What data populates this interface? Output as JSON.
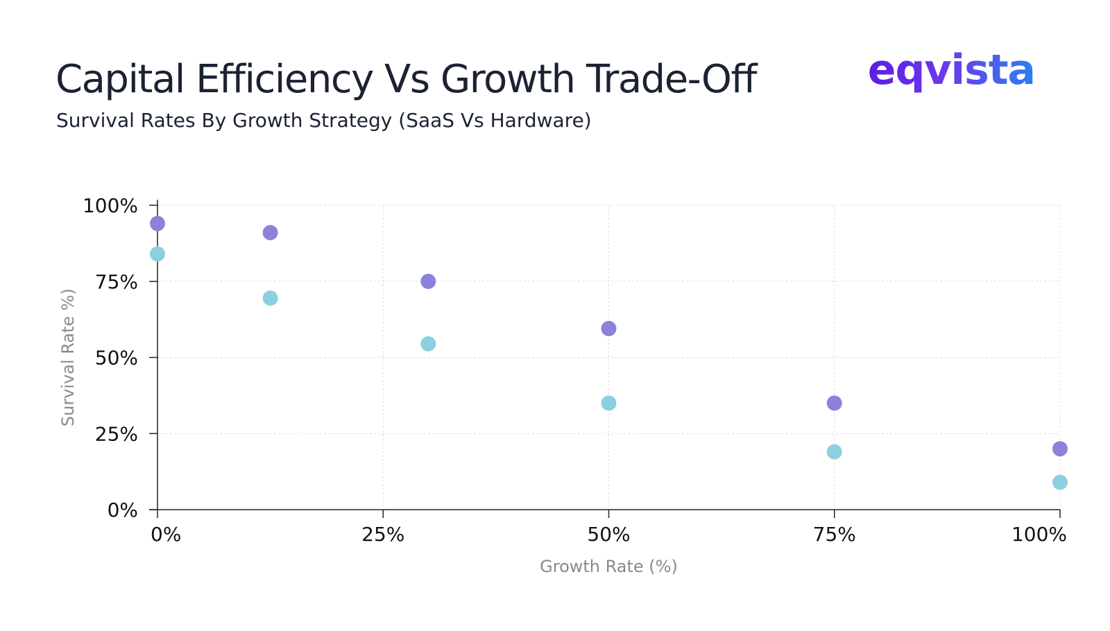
{
  "header": {
    "title": "Capital Efficiency Vs Growth Trade-Off",
    "subtitle": "Survival Rates By Growth Strategy (SaaS Vs Hardware)",
    "logo": "eqvista"
  },
  "chart_data": {
    "type": "scatter",
    "title": "Capital Efficiency Vs Growth Trade-Off",
    "subtitle": "Survival Rates By Growth Strategy (SaaS Vs Hardware)",
    "xlabel": "Growth Rate (%)",
    "ylabel": "Survival Rate %)",
    "xlim": [
      0,
      100
    ],
    "ylim": [
      0,
      100
    ],
    "xticks": [
      0,
      25,
      50,
      75,
      100
    ],
    "xtick_labels": [
      "0%",
      "25%",
      "50%",
      "75%",
      "100%"
    ],
    "yticks": [
      0,
      25,
      50,
      75,
      100
    ],
    "ytick_labels": [
      "0%",
      "25%",
      "50%",
      "75%",
      "100%"
    ],
    "grid": true,
    "legend": "none",
    "series": [
      {
        "color": "#8a82dc",
        "points": [
          {
            "x": 0,
            "y": 94
          },
          {
            "x": 12.5,
            "y": 91
          },
          {
            "x": 30,
            "y": 75
          },
          {
            "x": 50,
            "y": 59.5
          },
          {
            "x": 75,
            "y": 35
          },
          {
            "x": 100,
            "y": 20
          }
        ]
      },
      {
        "color": "#8bd0df",
        "points": [
          {
            "x": 0,
            "y": 84
          },
          {
            "x": 12.5,
            "y": 69.5
          },
          {
            "x": 30,
            "y": 54.5
          },
          {
            "x": 50,
            "y": 35
          },
          {
            "x": 75,
            "y": 19
          },
          {
            "x": 100,
            "y": 9
          }
        ]
      }
    ]
  }
}
